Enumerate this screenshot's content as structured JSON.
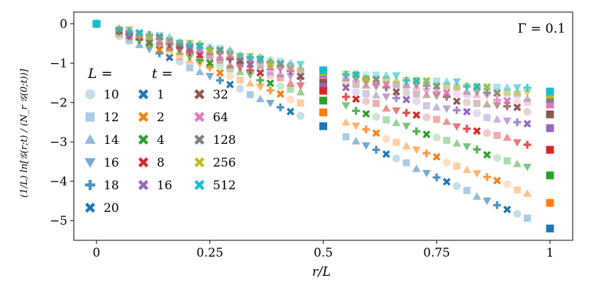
{
  "chart_data": {
    "type": "scatter",
    "annotation": "Γ = 0.1",
    "xlabel": "r/L",
    "ylabel": "(1/L) ln[𝒢(r;t) / (N_r 𝒢(0;t))]",
    "xlim": [
      -0.05,
      1.05
    ],
    "ylim": [
      -5.5,
      0.3
    ],
    "xticks": [
      {
        "value": 0,
        "label": "0"
      },
      {
        "value": 0.25,
        "label": "0.25"
      },
      {
        "value": 0.5,
        "label": "0.5"
      },
      {
        "value": 0.75,
        "label": "0.75"
      },
      {
        "value": 1,
        "label": "1"
      }
    ],
    "yticks": [
      {
        "value": 0,
        "label": "0"
      },
      {
        "value": -1,
        "label": "−1"
      },
      {
        "value": -2,
        "label": "−2"
      },
      {
        "value": -3,
        "label": "−3"
      },
      {
        "value": -4,
        "label": "−4"
      },
      {
        "value": -5,
        "label": "−5"
      }
    ],
    "legend_L": {
      "title": "L =",
      "entries": [
        {
          "label": "10",
          "marker": "circle"
        },
        {
          "label": "12",
          "marker": "square"
        },
        {
          "label": "14",
          "marker": "triangle-up"
        },
        {
          "label": "16",
          "marker": "triangle-down"
        },
        {
          "label": "18",
          "marker": "plus"
        },
        {
          "label": "20",
          "marker": "x"
        }
      ]
    },
    "legend_t": {
      "title": "t =",
      "entries": [
        {
          "label": "1",
          "color": "#1f77b4"
        },
        {
          "label": "2",
          "color": "#ff7f0e"
        },
        {
          "label": "4",
          "color": "#2ca02c"
        },
        {
          "label": "8",
          "color": "#d62728"
        },
        {
          "label": "16",
          "color": "#9467bd"
        },
        {
          "label": "32",
          "color": "#8c564b"
        },
        {
          "label": "64",
          "color": "#e377c2"
        },
        {
          "label": "128",
          "color": "#7f7f7f"
        },
        {
          "label": "256",
          "color": "#bcbd22"
        },
        {
          "label": "512",
          "color": "#17becf"
        }
      ]
    },
    "series_by_t": [
      {
        "t": "1",
        "color": "#1f77b4",
        "first_half": [
          [
            0.05,
            -0.3
          ],
          [
            0.45,
            -2.35
          ]
        ],
        "middle": -2.6,
        "second_half": [
          [
            0.55,
            -2.85
          ],
          [
            0.95,
            -4.95
          ]
        ],
        "end": -5.2
      },
      {
        "t": "2",
        "color": "#ff7f0e",
        "first_half": [
          [
            0.05,
            -0.25
          ],
          [
            0.45,
            -2.0
          ]
        ],
        "middle": -2.25,
        "second_half": [
          [
            0.55,
            -2.5
          ],
          [
            0.95,
            -4.3
          ]
        ],
        "end": -4.55
      },
      {
        "t": "4",
        "color": "#2ca02c",
        "first_half": [
          [
            0.05,
            -0.22
          ],
          [
            0.45,
            -1.75
          ]
        ],
        "middle": -1.95,
        "second_half": [
          [
            0.55,
            -2.1
          ],
          [
            0.95,
            -3.65
          ]
        ],
        "end": -3.85
      },
      {
        "t": "8",
        "color": "#d62728",
        "first_half": [
          [
            0.05,
            -0.2
          ],
          [
            0.45,
            -1.55
          ]
        ],
        "middle": -1.7,
        "second_half": [
          [
            0.55,
            -1.85
          ],
          [
            0.95,
            -3.05
          ]
        ],
        "end": -3.2
      },
      {
        "t": "16",
        "color": "#9467bd",
        "first_half": [
          [
            0.05,
            -0.18
          ],
          [
            0.45,
            -1.4
          ]
        ],
        "middle": -1.5,
        "second_half": [
          [
            0.55,
            -1.65
          ],
          [
            0.95,
            -2.55
          ]
        ],
        "end": -2.65
      },
      {
        "t": "32",
        "color": "#8c564b",
        "first_half": [
          [
            0.05,
            -0.16
          ],
          [
            0.45,
            -1.3
          ]
        ],
        "middle": -1.4,
        "second_half": [
          [
            0.55,
            -1.5
          ],
          [
            0.95,
            -2.2
          ]
        ],
        "end": -2.3
      },
      {
        "t": "64",
        "color": "#e377c2",
        "first_half": [
          [
            0.05,
            -0.15
          ],
          [
            0.45,
            -1.2
          ]
        ],
        "middle": -1.3,
        "second_half": [
          [
            0.55,
            -1.4
          ],
          [
            0.95,
            -2.0
          ]
        ],
        "end": -2.05
      },
      {
        "t": "128",
        "color": "#7f7f7f",
        "first_half": [
          [
            0.05,
            -0.14
          ],
          [
            0.45,
            -1.15
          ]
        ],
        "middle": -1.25,
        "second_half": [
          [
            0.55,
            -1.35
          ],
          [
            0.95,
            -1.85
          ]
        ],
        "end": -1.9
      },
      {
        "t": "256",
        "color": "#bcbd22",
        "first_half": [
          [
            0.05,
            -0.13
          ],
          [
            0.45,
            -1.12
          ]
        ],
        "middle": -1.22,
        "second_half": [
          [
            0.55,
            -1.3
          ],
          [
            0.95,
            -1.75
          ]
        ],
        "end": -1.8
      },
      {
        "t": "512",
        "color": "#17becf",
        "first_half": [
          [
            0.05,
            -0.12
          ],
          [
            0.45,
            -1.08
          ]
        ],
        "middle": -1.18,
        "second_half": [
          [
            0.55,
            -1.25
          ],
          [
            0.95,
            -1.68
          ]
        ],
        "end": -1.72
      }
    ]
  }
}
